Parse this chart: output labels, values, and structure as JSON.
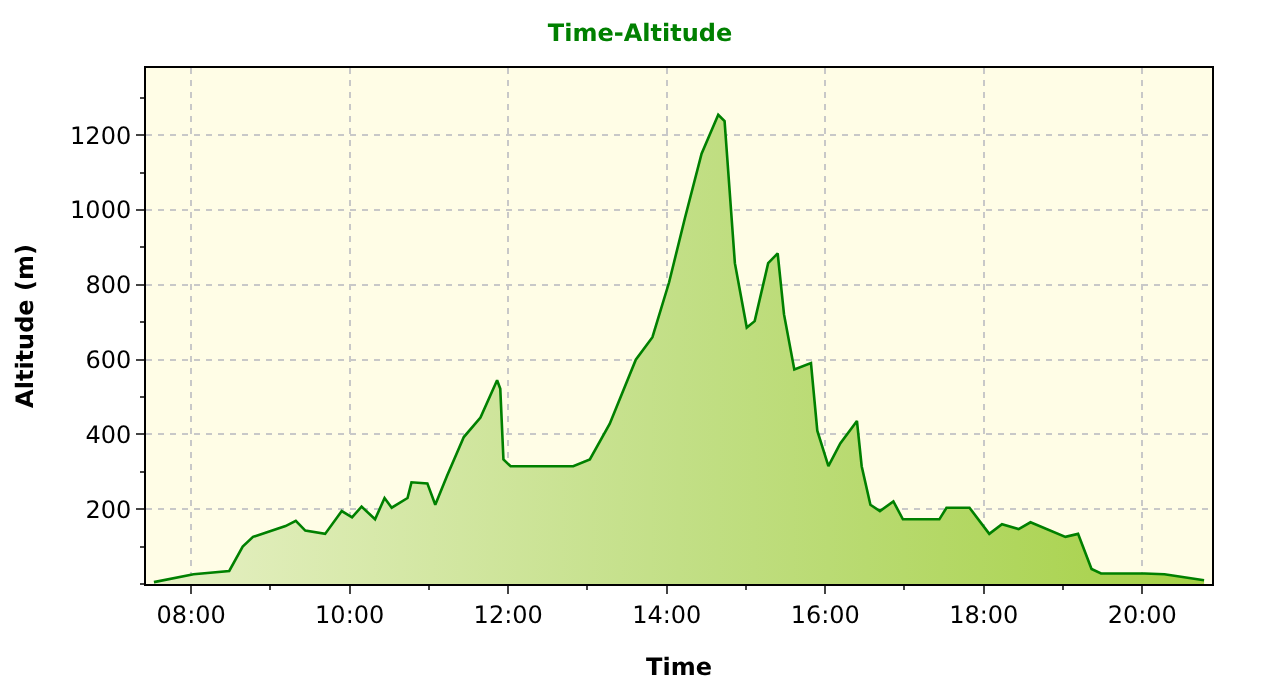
{
  "chart_data": {
    "type": "area",
    "title": "Time-Altitude",
    "xlabel": "Time",
    "ylabel": "Altitude (m)",
    "x": [
      7.53,
      8.03,
      8.48,
      8.65,
      8.78,
      9.19,
      9.32,
      9.44,
      9.69,
      9.9,
      10.03,
      10.15,
      10.32,
      10.44,
      10.53,
      10.73,
      10.78,
      10.98,
      11.08,
      11.23,
      11.44,
      11.65,
      11.86,
      11.9,
      11.94,
      12.03,
      12.82,
      13.03,
      13.28,
      13.61,
      13.82,
      14.03,
      14.23,
      14.44,
      14.65,
      14.73,
      14.86,
      15.01,
      15.11,
      15.28,
      15.4,
      15.48,
      15.61,
      15.82,
      15.9,
      16.04,
      16.19,
      16.4,
      16.46,
      16.57,
      16.69,
      16.86,
      16.98,
      17.44,
      17.53,
      17.82,
      18.07,
      18.23,
      18.44,
      18.59,
      19.03,
      19.19,
      19.36,
      19.48,
      20.03,
      20.28,
      20.78
    ],
    "series": [
      {
        "color": "#008000",
        "values": [
          5,
          26,
          35,
          100,
          126,
          155,
          169,
          143,
          134,
          195,
          178,
          207,
          173,
          230,
          204,
          230,
          272,
          269,
          212,
          290,
          393,
          445,
          545,
          522,
          333,
          315,
          315,
          333,
          428,
          600,
          660,
          807,
          979,
          1151,
          1255,
          1238,
          858,
          686,
          703,
          858,
          884,
          721,
          574,
          591,
          410,
          315,
          376,
          436,
          315,
          212,
          195,
          221,
          173,
          173,
          204,
          204,
          134,
          160,
          147,
          165,
          126,
          134,
          40,
          28,
          28,
          26,
          10
        ]
      }
    ],
    "xlim": [
      7.43,
      20.88
    ],
    "ylim": [
      0,
      1380
    ],
    "xticks": [
      {
        "value": 8,
        "label": "08:00"
      },
      {
        "value": 10,
        "label": "10:00"
      },
      {
        "value": 12,
        "label": "12:00"
      },
      {
        "value": 14,
        "label": "14:00"
      },
      {
        "value": 16,
        "label": "16:00"
      },
      {
        "value": 18,
        "label": "18:00"
      },
      {
        "value": 20,
        "label": "20:00"
      }
    ],
    "yticks": [
      200,
      400,
      600,
      800,
      1000,
      1200
    ],
    "grid": true,
    "marker": "none",
    "line_style": "solid"
  }
}
